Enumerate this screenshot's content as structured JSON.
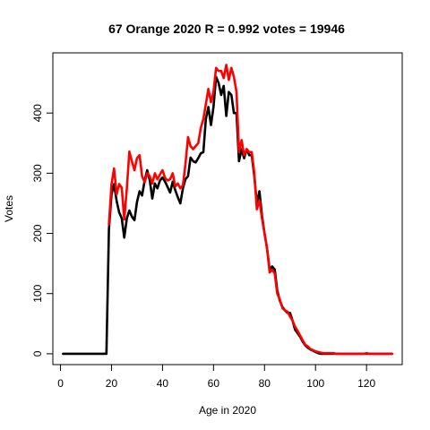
{
  "chart_data": {
    "type": "line",
    "title": "67 Orange 2020 R = 0.992 votes = 19946",
    "xlabel": "Age in 2020",
    "ylabel": "Votes",
    "xlim": [
      -3,
      134
    ],
    "ylim": [
      -18,
      500
    ],
    "xticks": [
      0,
      20,
      40,
      60,
      80,
      100,
      120
    ],
    "yticks": [
      0,
      100,
      200,
      300,
      400
    ],
    "grid": false,
    "legend": "none",
    "series": [
      {
        "color": "#000000",
        "x": [
          1,
          2,
          3,
          4,
          5,
          6,
          7,
          8,
          9,
          10,
          11,
          12,
          13,
          14,
          15,
          16,
          17,
          18,
          19,
          20,
          21,
          22,
          23,
          24,
          25,
          26,
          27,
          28,
          29,
          30,
          31,
          32,
          33,
          34,
          35,
          36,
          37,
          38,
          39,
          40,
          41,
          42,
          43,
          44,
          45,
          46,
          47,
          48,
          49,
          50,
          51,
          52,
          53,
          54,
          55,
          56,
          57,
          58,
          59,
          60,
          61,
          62,
          63,
          64,
          65,
          66,
          67,
          68,
          69,
          70,
          71,
          72,
          73,
          74,
          75,
          76,
          77,
          78,
          79,
          80,
          81,
          82,
          83,
          84,
          85,
          86,
          87,
          88,
          89,
          90,
          91,
          92,
          93,
          94,
          95,
          96,
          97,
          98,
          99,
          100,
          101,
          102,
          103,
          104,
          105,
          106,
          107,
          108,
          109,
          110,
          111,
          112,
          113,
          114,
          115,
          116,
          117,
          118,
          119,
          120,
          121,
          122,
          123,
          124,
          125,
          126,
          127,
          128,
          129,
          130
        ],
        "y": [
          0,
          0,
          0,
          0,
          0,
          0,
          0,
          0,
          0,
          0,
          0,
          0,
          0,
          0,
          0,
          0,
          0,
          0,
          207,
          265,
          282,
          254,
          235,
          225,
          193,
          225,
          238,
          228,
          222,
          252,
          270,
          263,
          288,
          305,
          288,
          258,
          283,
          275,
          288,
          293,
          286,
          277,
          268,
          286,
          272,
          260,
          250,
          275,
          290,
          295,
          326,
          320,
          318,
          325,
          333,
          335,
          390,
          410,
          380,
          410,
          460,
          450,
          430,
          445,
          395,
          435,
          430,
          400,
          400,
          320,
          340,
          325,
          340,
          330,
          330,
          295,
          250,
          270,
          230,
          200,
          175,
          140,
          145,
          140,
          105,
          88,
          78,
          72,
          68,
          68,
          55,
          40,
          34,
          28,
          20,
          14,
          10,
          7,
          5,
          3,
          1,
          0,
          0,
          0,
          0,
          0,
          0,
          0,
          0,
          0,
          0,
          0,
          0,
          0,
          0,
          0,
          0,
          0,
          0,
          0,
          0,
          0,
          0,
          0,
          0,
          0,
          0,
          0,
          0,
          0
        ]
      },
      {
        "color": "#ff0000",
        "x": [
          19,
          20,
          21,
          22,
          23,
          24,
          25,
          26,
          27,
          28,
          29,
          30,
          31,
          32,
          33,
          34,
          35,
          36,
          37,
          38,
          39,
          40,
          41,
          42,
          43,
          44,
          45,
          46,
          47,
          48,
          49,
          50,
          51,
          52,
          53,
          54,
          55,
          56,
          57,
          58,
          59,
          60,
          61,
          62,
          63,
          64,
          65,
          66,
          67,
          68,
          69,
          70,
          71,
          72,
          73,
          74,
          75,
          76,
          77,
          78,
          79,
          80,
          81,
          82,
          83,
          84,
          85,
          86,
          87,
          88,
          89,
          90,
          91,
          92,
          93,
          94,
          95,
          96,
          97,
          98,
          99,
          100,
          101,
          102,
          103,
          104,
          105,
          106,
          107,
          108,
          109,
          110,
          111,
          112,
          113,
          114,
          115,
          116,
          117,
          118,
          119,
          120,
          121,
          122,
          123,
          124,
          125,
          126,
          127,
          128,
          129,
          130
        ],
        "y": [
          215,
          282,
          308,
          265,
          282,
          276,
          223,
          275,
          336,
          320,
          305,
          325,
          330,
          295,
          285,
          300,
          295,
          283,
          300,
          290,
          298,
          305,
          292,
          288,
          290,
          300,
          278,
          283,
          275,
          280,
          315,
          360,
          345,
          340,
          345,
          350,
          375,
          390,
          415,
          440,
          418,
          435,
          475,
          470,
          470,
          458,
          480,
          455,
          475,
          460,
          435,
          335,
          355,
          330,
          340,
          335,
          335,
          300,
          240,
          255,
          225,
          200,
          175,
          135,
          140,
          133,
          100,
          90,
          76,
          72,
          70,
          62,
          55,
          45,
          38,
          30,
          22,
          15,
          12,
          8,
          6,
          4,
          3,
          2,
          1,
          1,
          1,
          1,
          1,
          0,
          0,
          0,
          0,
          0,
          0,
          0,
          0,
          0,
          0,
          0,
          0,
          1,
          0,
          0,
          0,
          0,
          0,
          0,
          0,
          0,
          0,
          0
        ]
      }
    ]
  }
}
